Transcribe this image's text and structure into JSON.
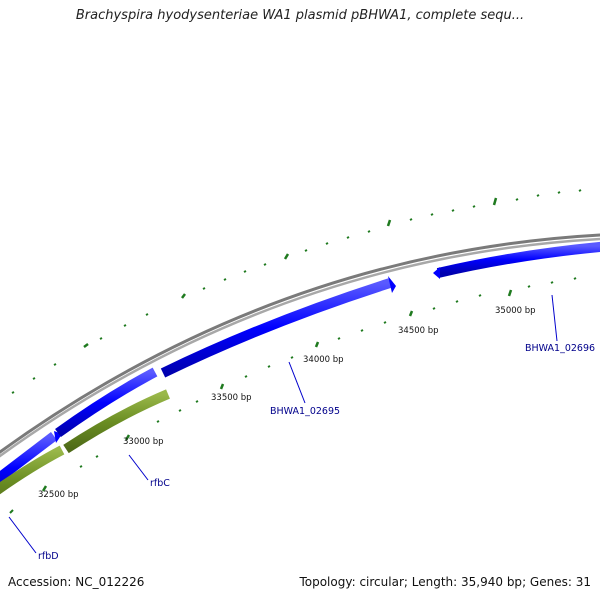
{
  "title": "Brachyspira hyodysenteriae WA1 plasmid pBHWA1, complete sequ...",
  "accession_label": "Accession:",
  "accession": "NC_012226",
  "topology_label": "Topology:",
  "topology": "circular",
  "length_label": "Length:",
  "length": "35,940 bp",
  "genes_label": "Genes:",
  "genes": "31",
  "ticks": [
    {
      "label": "32500 bp"
    },
    {
      "label": "33000 bp"
    },
    {
      "label": "33500 bp"
    },
    {
      "label": "34000 bp"
    },
    {
      "label": "34500 bp"
    },
    {
      "label": "35000 bp"
    }
  ],
  "features": [
    {
      "name": "rfbD",
      "strand": "forward",
      "color": "#0000ff"
    },
    {
      "name": "rfbC",
      "strand": "reverse",
      "color": "#6b8e23"
    },
    {
      "name": "BHWA1_02695",
      "strand": "forward",
      "color": "#0000ff"
    },
    {
      "name": "BHWA1_02696",
      "strand": "forward",
      "color": "#0000ff"
    }
  ],
  "colors": {
    "backbone": "#8c8c8c",
    "forward_gene": "#0000ff",
    "reverse_gene": "#6b8e23",
    "tick": "#1f7a1f",
    "label": "#00008b"
  }
}
